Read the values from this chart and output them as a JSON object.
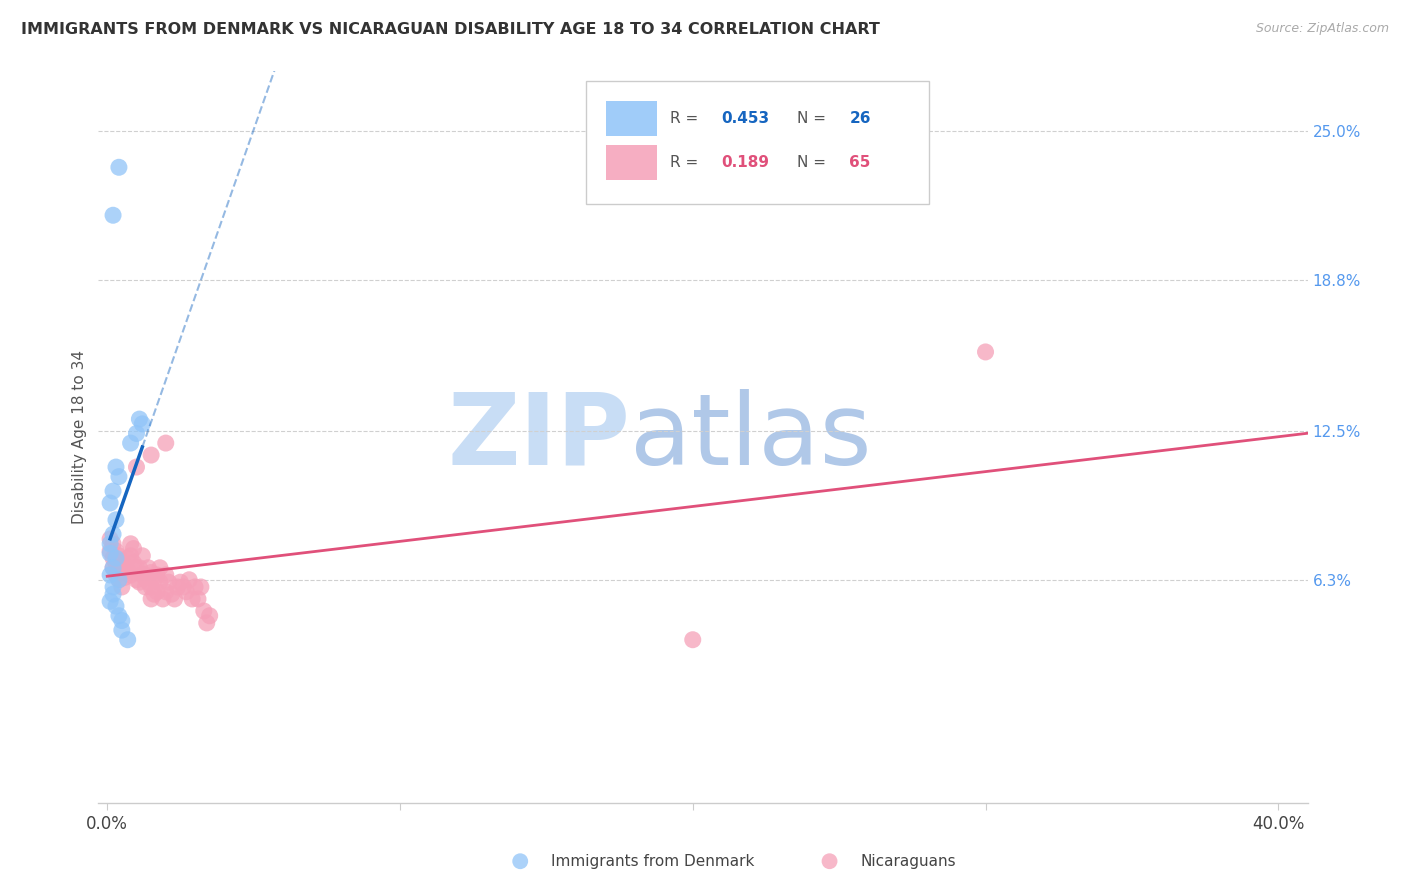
{
  "title": "IMMIGRANTS FROM DENMARK VS NICARAGUAN DISABILITY AGE 18 TO 34 CORRELATION CHART",
  "source": "Source: ZipAtlas.com",
  "ylabel": "Disability Age 18 to 34",
  "ytick_labels": [
    "6.3%",
    "12.5%",
    "18.8%",
    "25.0%"
  ],
  "ytick_values": [
    0.063,
    0.125,
    0.188,
    0.25
  ],
  "xlim": [
    -0.003,
    0.41
  ],
  "ylim": [
    -0.03,
    0.275
  ],
  "legend1_r": "R = 0.453",
  "legend1_n": "N = 26",
  "legend2_r": "R = 0.189",
  "legend2_n": "N = 65",
  "blue_color": "#90c4f8",
  "pink_color": "#f5a0b8",
  "blue_line_color": "#1565c0",
  "pink_line_color": "#e0507a",
  "blue_scatter": [
    [
      0.002,
      0.215
    ],
    [
      0.004,
      0.235
    ],
    [
      0.011,
      0.13
    ],
    [
      0.012,
      0.128
    ],
    [
      0.01,
      0.124
    ],
    [
      0.008,
      0.12
    ],
    [
      0.003,
      0.11
    ],
    [
      0.004,
      0.106
    ],
    [
      0.002,
      0.1
    ],
    [
      0.001,
      0.095
    ],
    [
      0.003,
      0.088
    ],
    [
      0.002,
      0.082
    ],
    [
      0.001,
      0.078
    ],
    [
      0.001,
      0.074
    ],
    [
      0.003,
      0.072
    ],
    [
      0.002,
      0.068
    ],
    [
      0.001,
      0.065
    ],
    [
      0.004,
      0.063
    ],
    [
      0.002,
      0.06
    ],
    [
      0.002,
      0.057
    ],
    [
      0.001,
      0.054
    ],
    [
      0.003,
      0.052
    ],
    [
      0.004,
      0.048
    ],
    [
      0.005,
      0.046
    ],
    [
      0.005,
      0.042
    ],
    [
      0.007,
      0.038
    ]
  ],
  "pink_scatter": [
    [
      0.001,
      0.08
    ],
    [
      0.001,
      0.075
    ],
    [
      0.002,
      0.078
    ],
    [
      0.002,
      0.072
    ],
    [
      0.002,
      0.068
    ],
    [
      0.003,
      0.075
    ],
    [
      0.003,
      0.07
    ],
    [
      0.003,
      0.065
    ],
    [
      0.004,
      0.073
    ],
    [
      0.004,
      0.068
    ],
    [
      0.004,
      0.063
    ],
    [
      0.005,
      0.071
    ],
    [
      0.005,
      0.066
    ],
    [
      0.005,
      0.06
    ],
    [
      0.006,
      0.069
    ],
    [
      0.006,
      0.064
    ],
    [
      0.007,
      0.072
    ],
    [
      0.007,
      0.067
    ],
    [
      0.008,
      0.078
    ],
    [
      0.008,
      0.073
    ],
    [
      0.008,
      0.065
    ],
    [
      0.009,
      0.076
    ],
    [
      0.009,
      0.07
    ],
    [
      0.01,
      0.11
    ],
    [
      0.01,
      0.068
    ],
    [
      0.01,
      0.063
    ],
    [
      0.011,
      0.068
    ],
    [
      0.011,
      0.062
    ],
    [
      0.012,
      0.073
    ],
    [
      0.012,
      0.065
    ],
    [
      0.013,
      0.065
    ],
    [
      0.013,
      0.06
    ],
    [
      0.014,
      0.068
    ],
    [
      0.014,
      0.062
    ],
    [
      0.015,
      0.115
    ],
    [
      0.015,
      0.066
    ],
    [
      0.015,
      0.06
    ],
    [
      0.015,
      0.055
    ],
    [
      0.016,
      0.063
    ],
    [
      0.016,
      0.057
    ],
    [
      0.017,
      0.065
    ],
    [
      0.017,
      0.058
    ],
    [
      0.018,
      0.068
    ],
    [
      0.018,
      0.062
    ],
    [
      0.019,
      0.055
    ],
    [
      0.02,
      0.12
    ],
    [
      0.02,
      0.065
    ],
    [
      0.02,
      0.058
    ],
    [
      0.021,
      0.062
    ],
    [
      0.022,
      0.057
    ],
    [
      0.023,
      0.055
    ],
    [
      0.024,
      0.06
    ],
    [
      0.025,
      0.062
    ],
    [
      0.026,
      0.06
    ],
    [
      0.027,
      0.058
    ],
    [
      0.028,
      0.063
    ],
    [
      0.029,
      0.055
    ],
    [
      0.03,
      0.06
    ],
    [
      0.031,
      0.055
    ],
    [
      0.032,
      0.06
    ],
    [
      0.033,
      0.05
    ],
    [
      0.034,
      0.045
    ],
    [
      0.035,
      0.048
    ],
    [
      0.2,
      0.038
    ],
    [
      0.3,
      0.158
    ]
  ],
  "watermark_zip": "ZIP",
  "watermark_atlas": "atlas",
  "background_color": "#ffffff"
}
